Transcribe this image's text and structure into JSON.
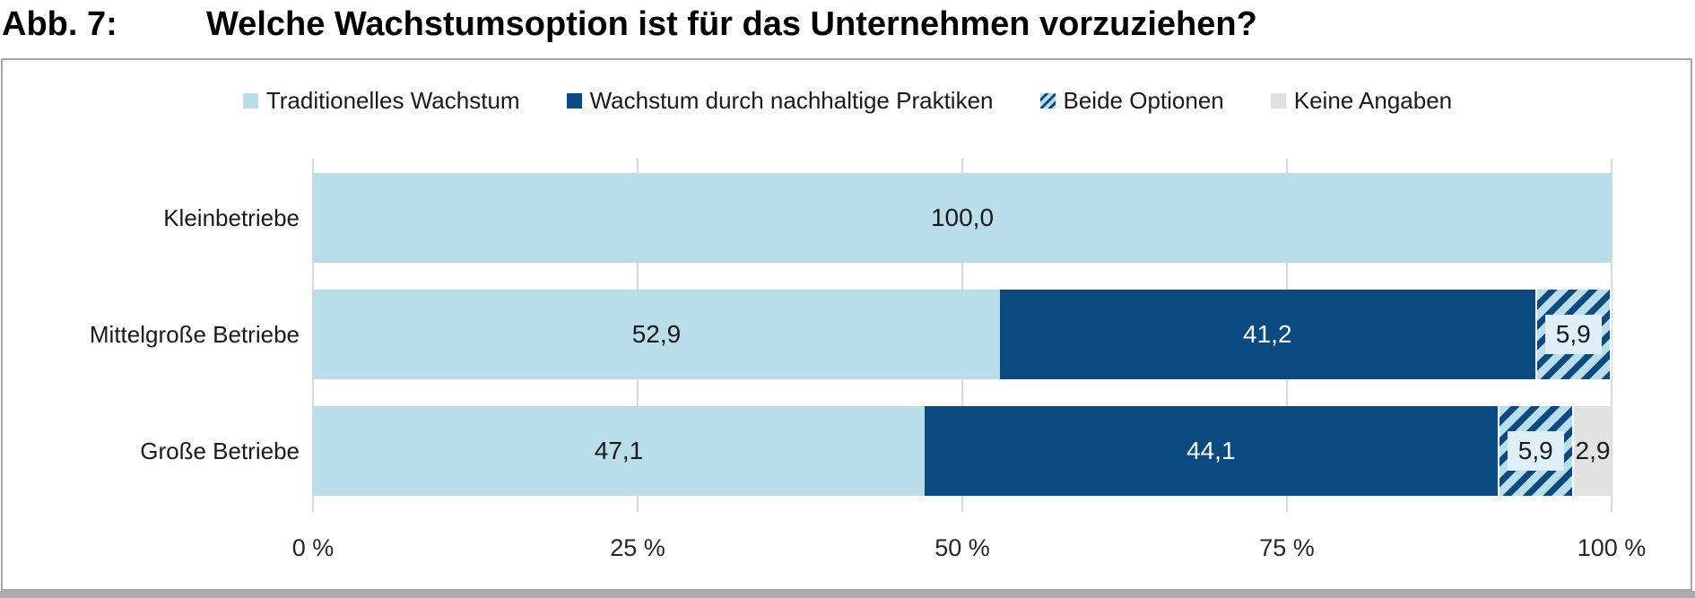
{
  "title": {
    "label": "Abb. 7:",
    "text": "Welche Wachstumsoption ist für das Unternehmen vorzuziehen?"
  },
  "chart_data": {
    "type": "bar",
    "orientation": "horizontal",
    "stacked": true,
    "title": "Welche Wachstumsoption ist für das Unternehmen vorzuziehen?",
    "value_unit": "percent",
    "categories": [
      "Kleinbetriebe",
      "Mittelgroße Betriebe",
      "Große Betriebe"
    ],
    "series": [
      {
        "name": "Traditionelles Wachstum",
        "style": "solid-light-blue",
        "values": [
          100.0,
          52.9,
          47.1
        ],
        "labels": [
          "100,0",
          "52,9",
          "47,1"
        ]
      },
      {
        "name": "Wachstum durch nachhaltige Praktiken",
        "style": "solid-navy",
        "values": [
          0,
          41.2,
          44.1
        ],
        "labels": [
          "",
          "41,2",
          "44,1"
        ]
      },
      {
        "name": "Beide Optionen",
        "style": "diagonal-hatch-navy-on-light-blue",
        "values": [
          0,
          5.9,
          5.9
        ],
        "labels": [
          "",
          "5,9",
          "5,9"
        ]
      },
      {
        "name": "Keine Angaben",
        "style": "solid-gray",
        "values": [
          0,
          0,
          2.9
        ],
        "labels": [
          "",
          "",
          "2,9"
        ]
      }
    ],
    "x_axis": {
      "min": 0,
      "max": 100,
      "tick_values": [
        0,
        25,
        50,
        75,
        100
      ],
      "tick_labels": [
        "0 %",
        "25 %",
        "50 %",
        "75 %",
        "100 %"
      ]
    },
    "legend_position": "top",
    "grid": "vertical"
  },
  "theme": {
    "light_blue": "#B9DDE9",
    "navy": "#0A4A80",
    "segment_gray": "#E2E2E2",
    "legend_gray": "#E0E0E0",
    "hatch_label_bg": "#DFEFF7",
    "gridline": "#D9D9D9",
    "frame_border": "#A6A6A6",
    "bottom_bar": "#ABABAB",
    "text": "#1A1A1A"
  }
}
